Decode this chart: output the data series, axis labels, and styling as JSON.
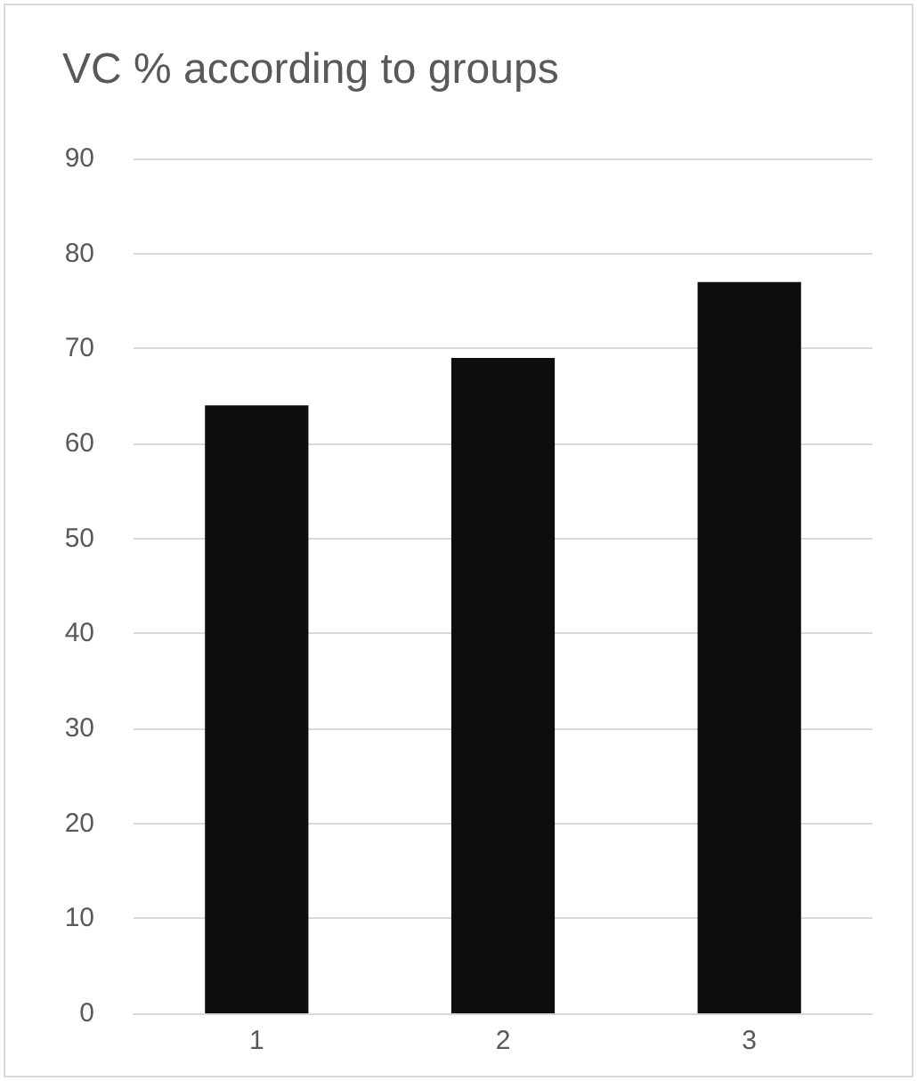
{
  "chart_data": {
    "type": "bar",
    "title": "VC % according to groups",
    "categories": [
      "1",
      "2",
      "3"
    ],
    "values": [
      64,
      69,
      77
    ],
    "color": "#0d0d0d",
    "ylim": [
      0,
      90
    ],
    "yticks": [
      0,
      10,
      20,
      30,
      40,
      50,
      60,
      70,
      80,
      90
    ],
    "grid": "y"
  }
}
